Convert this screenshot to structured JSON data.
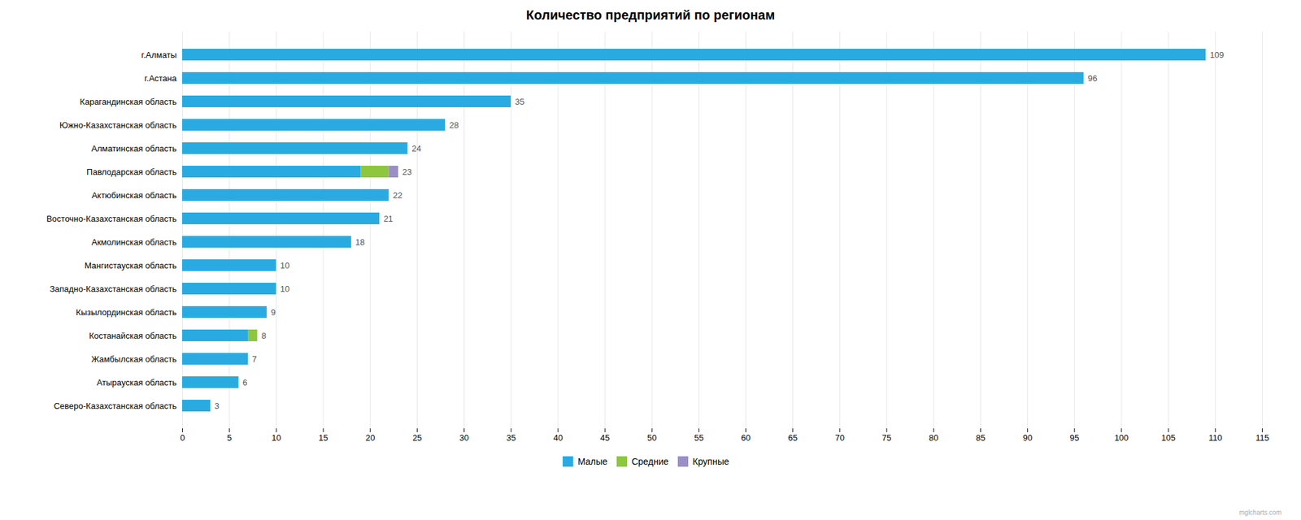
{
  "chart_data": {
    "type": "bar",
    "orientation": "horizontal",
    "stacked": true,
    "title": "Количество предприятий по регионам",
    "categories": [
      "г.Алматы",
      "г.Астана",
      "Карагандинская область",
      "Южно-Казахстанская область",
      "Алматинская область",
      "Павлодарская область",
      "Актюбинская область",
      "Восточно-Казахстанская область",
      "Акмолинская область",
      "Мангистауская область",
      "Западно-Казахстанская область",
      "Кызылординская область",
      "Костанайская область",
      "Жамбылская область",
      "Атырауская область",
      "Северо-Казахстанская область"
    ],
    "series": [
      {
        "name": "Малые",
        "color": "#29ABE2",
        "values": [
          109,
          96,
          35,
          28,
          24,
          19,
          22,
          21,
          18,
          10,
          10,
          9,
          7,
          7,
          6,
          3
        ]
      },
      {
        "name": "Средние",
        "color": "#8DC63F",
        "values": [
          0,
          0,
          0,
          0,
          0,
          3,
          0,
          0,
          0,
          0,
          0,
          0,
          1,
          0,
          0,
          0
        ]
      },
      {
        "name": "Крупные",
        "color": "#9B8EC4",
        "values": [
          0,
          0,
          0,
          0,
          0,
          1,
          0,
          0,
          0,
          0,
          0,
          0,
          0,
          0,
          0,
          0
        ]
      }
    ],
    "totals": [
      109,
      96,
      35,
      28,
      24,
      23,
      22,
      21,
      18,
      10,
      10,
      9,
      8,
      7,
      6,
      3
    ],
    "data_labels": true,
    "xlim": [
      0,
      115
    ],
    "xticks": [
      0,
      5,
      10,
      15,
      20,
      25,
      30,
      35,
      40,
      45,
      50,
      55,
      60,
      65,
      70,
      75,
      80,
      85,
      90,
      95,
      100,
      105,
      110,
      115
    ],
    "grid": true,
    "legend": "bottom",
    "annotations": [
      "mglcharts.com"
    ]
  }
}
